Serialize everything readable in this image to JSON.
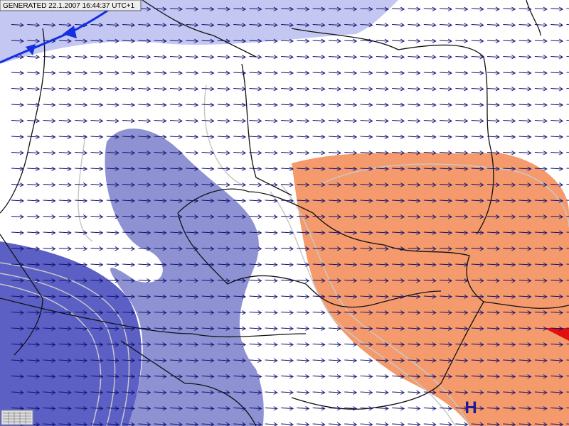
{
  "header": {
    "generated": "GENERATED 22.1.2007 16:44:37 UTC+1"
  },
  "pressure_centers": [
    {
      "label": "H"
    }
  ]
}
